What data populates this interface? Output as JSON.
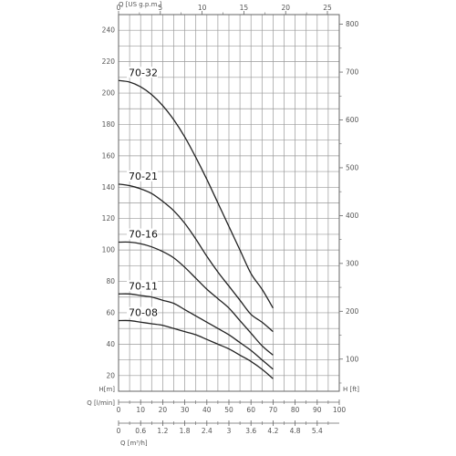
{
  "chart_data": {
    "type": "line",
    "axes": {
      "x_bottom": {
        "label": "Q [l/min]",
        "range": [
          0,
          100
        ],
        "ticks": [
          0,
          10,
          20,
          30,
          40,
          50,
          60,
          70,
          80,
          90,
          100
        ]
      },
      "x_bottom2": {
        "label": "Q [m³/h]",
        "range": [
          0,
          6
        ],
        "ticks": [
          "0",
          "0.6",
          "1.2",
          "1.8",
          "2.4",
          "3",
          "3.6",
          "4.2",
          "4.8",
          "5.4"
        ]
      },
      "x_top": {
        "label": "Q [US g.p.m.]",
        "range": [
          0,
          26.42
        ],
        "ticks": [
          0,
          5,
          10,
          15,
          20,
          25
        ]
      },
      "y_left": {
        "label": "H[m]",
        "range": [
          10,
          250
        ],
        "ticks": [
          20,
          40,
          60,
          80,
          100,
          120,
          140,
          160,
          180,
          200,
          220,
          240
        ]
      },
      "y_right": {
        "label": "H [ft]",
        "range": [
          32.8,
          820.2
        ],
        "ticks": [
          100,
          200,
          300,
          400,
          500,
          600,
          700,
          800
        ]
      },
      "grid": true
    },
    "series": [
      {
        "name": "70-32",
        "x": [
          0,
          5,
          10,
          15,
          20,
          25,
          30,
          35,
          40,
          45,
          50,
          55,
          60,
          65,
          70
        ],
        "y": [
          208,
          207,
          204,
          199,
          192,
          183,
          172,
          159,
          145,
          130,
          115,
          100,
          85,
          75,
          63
        ]
      },
      {
        "name": "70-21",
        "x": [
          0,
          5,
          10,
          15,
          20,
          25,
          30,
          35,
          40,
          45,
          50,
          55,
          60,
          65,
          70
        ],
        "y": [
          142,
          141,
          139,
          136,
          131,
          125,
          117,
          107,
          96,
          86,
          77,
          68,
          59,
          54,
          48
        ]
      },
      {
        "name": "70-16",
        "x": [
          0,
          5,
          10,
          15,
          20,
          25,
          30,
          35,
          40,
          45,
          50,
          55,
          60,
          65,
          70
        ],
        "y": [
          105,
          105,
          104,
          102,
          99,
          95,
          89,
          82,
          75,
          69,
          63,
          55,
          47,
          39,
          33
        ]
      },
      {
        "name": "70-11",
        "x": [
          0,
          5,
          10,
          15,
          20,
          25,
          30,
          35,
          40,
          45,
          50,
          55,
          60,
          65,
          70
        ],
        "y": [
          72,
          72,
          71,
          70,
          68,
          66,
          62,
          58,
          54,
          50,
          46,
          41,
          36,
          30,
          24
        ]
      },
      {
        "name": "70-08",
        "x": [
          0,
          5,
          10,
          15,
          20,
          25,
          30,
          35,
          40,
          45,
          50,
          55,
          60,
          65,
          70
        ],
        "y": [
          55,
          55,
          54,
          53,
          52,
          50,
          48,
          46,
          43,
          40,
          37,
          33,
          29,
          24,
          18
        ]
      }
    ]
  }
}
